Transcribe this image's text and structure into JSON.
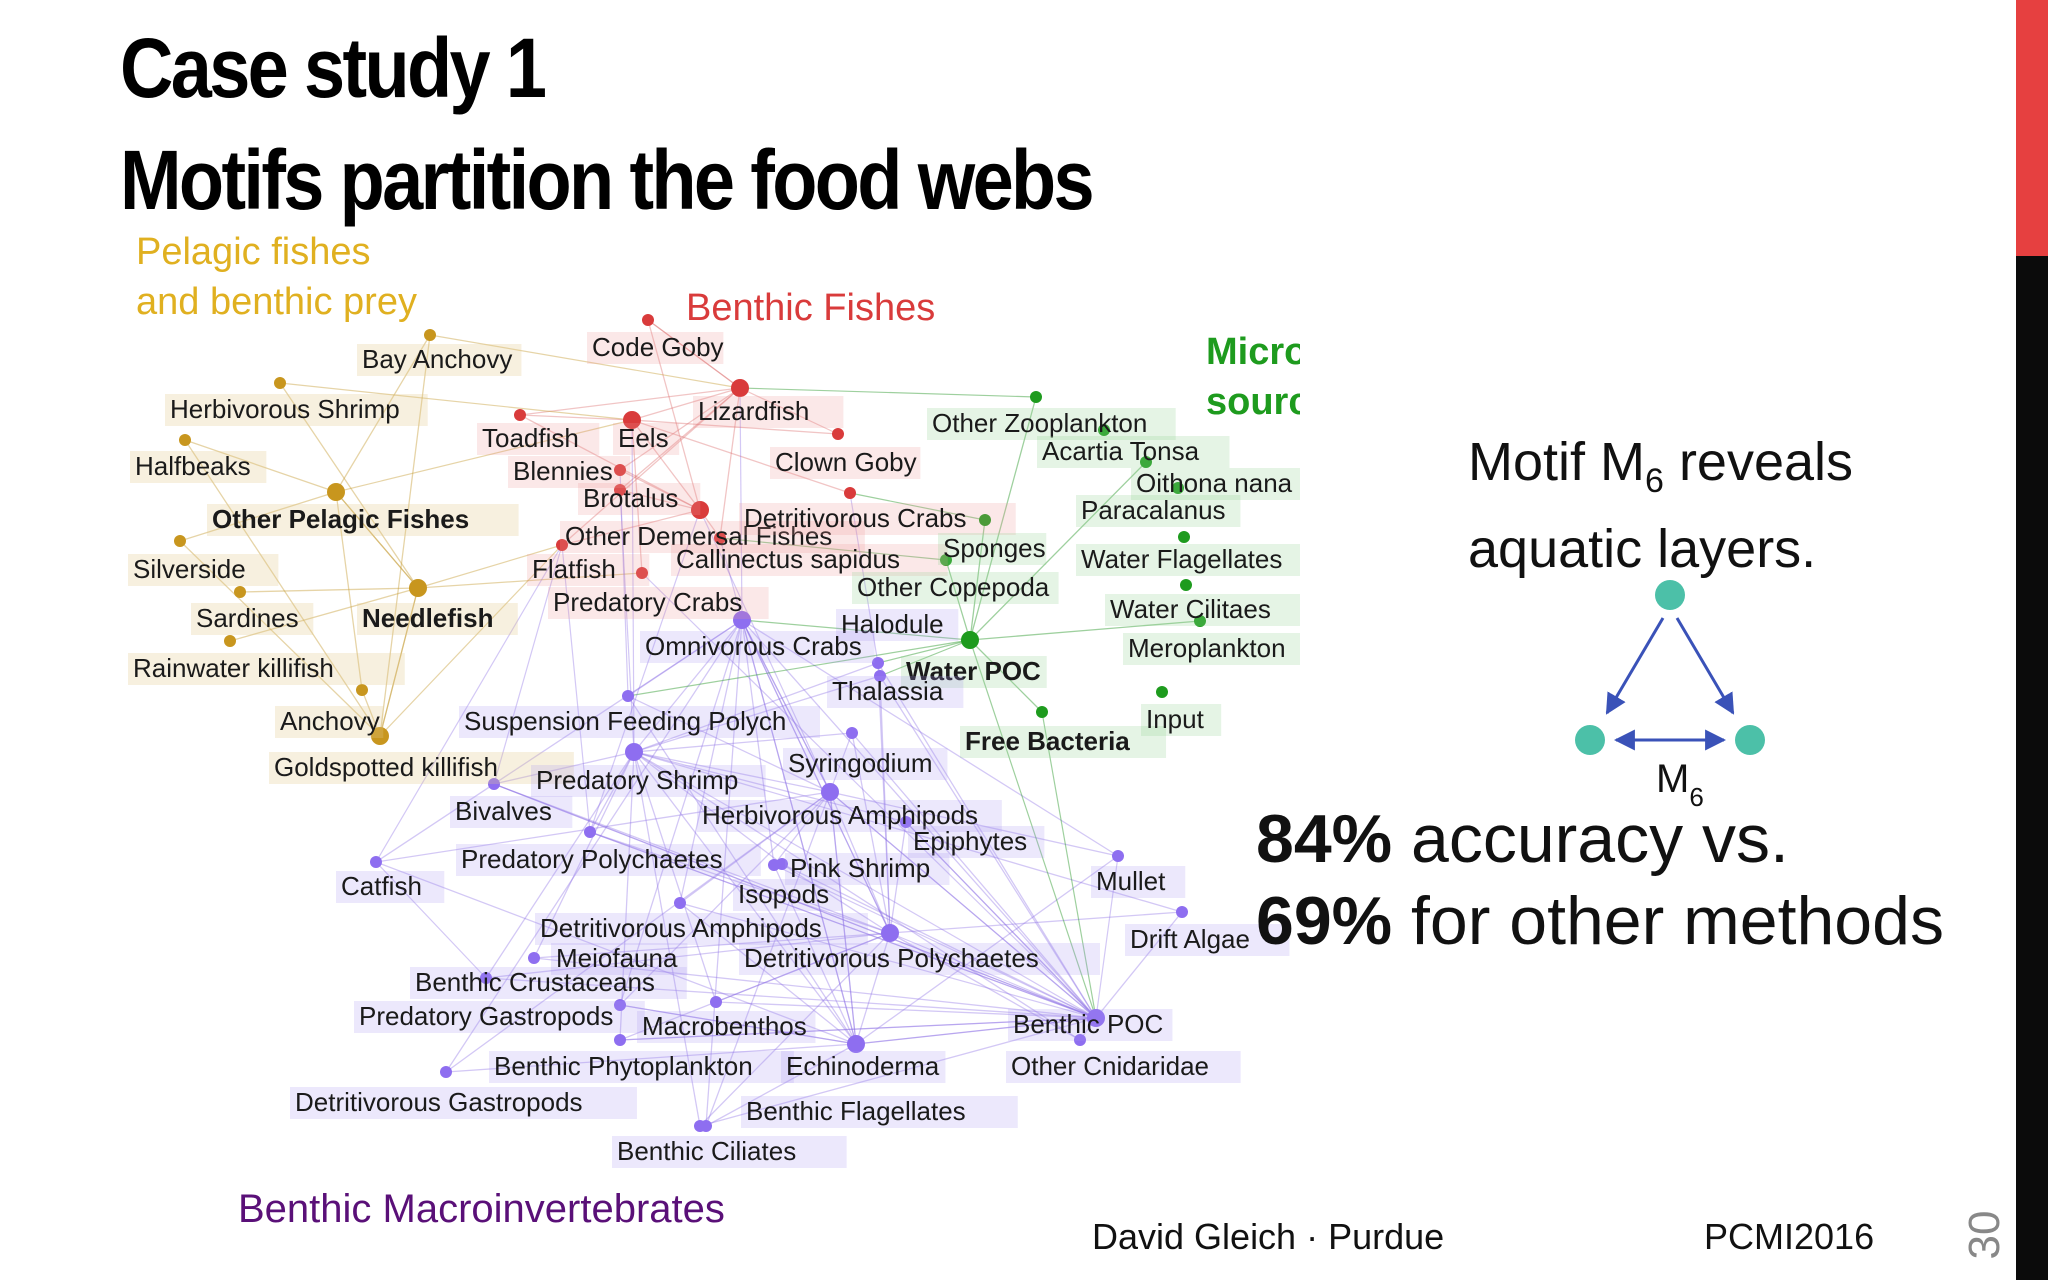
{
  "slide": {
    "title_line1": "Case study 1",
    "title_line2": "Motifs partition the food webs",
    "page_number": "30",
    "author": "David Gleich · Purdue",
    "event": "PCMI2016"
  },
  "colors": {
    "pelagic": "#e0b020",
    "pelagic_node": "#c8961e",
    "benthic_fish": "#d93b3b",
    "micronutrient": "#1e9b1e",
    "macroinvert": "#5a1078",
    "invert_node": "#8e6ef0",
    "motif_node": "#4cc0a8",
    "motif_edge": "#3a52b8",
    "accent_red": "#e64040"
  },
  "groups": {
    "pelagic_line1": "Pelagic fishes",
    "pelagic_line2": "and benthic prey",
    "benthic_fishes": "Benthic Fishes",
    "micro_line1": "Micronutrient",
    "micro_line2": "sources",
    "macroinvertebrates": "Benthic Macroinvertebrates"
  },
  "food_web": {
    "nodes": [
      {
        "label": "Bay Anchovy",
        "group": "pelagic"
      },
      {
        "label": "Herbivorous Shrimp",
        "group": "pelagic"
      },
      {
        "label": "Halfbeaks",
        "group": "pelagic"
      },
      {
        "label": "Other Pelagic Fishes",
        "group": "pelagic",
        "bold": true
      },
      {
        "label": "Silverside",
        "group": "pelagic"
      },
      {
        "label": "Sardines",
        "group": "pelagic"
      },
      {
        "label": "Needlefish",
        "group": "pelagic",
        "bold": true
      },
      {
        "label": "Rainwater killifish",
        "group": "pelagic"
      },
      {
        "label": "Anchovy",
        "group": "pelagic"
      },
      {
        "label": "Goldspotted killifish",
        "group": "pelagic"
      },
      {
        "label": "Code Goby",
        "group": "fish"
      },
      {
        "label": "Lizardfish",
        "group": "fish"
      },
      {
        "label": "Toadfish",
        "group": "fish"
      },
      {
        "label": "Eels",
        "group": "fish"
      },
      {
        "label": "Blennies",
        "group": "fish"
      },
      {
        "label": "Clown Goby",
        "group": "fish"
      },
      {
        "label": "Brotalus",
        "group": "fish"
      },
      {
        "label": "Other Demersal Fishes",
        "group": "fish"
      },
      {
        "label": "Flatfish",
        "group": "fish"
      },
      {
        "label": "Detritivorous Crabs",
        "group": "fish"
      },
      {
        "label": "Callinectus sapidus",
        "group": "fish"
      },
      {
        "label": "Predatory Crabs",
        "group": "fish"
      },
      {
        "label": "Other Zooplankton",
        "group": "micro"
      },
      {
        "label": "Acartia Tonsa",
        "group": "micro"
      },
      {
        "label": "Oithona nana",
        "group": "micro"
      },
      {
        "label": "Paracalanus",
        "group": "micro"
      },
      {
        "label": "Sponges",
        "group": "micro"
      },
      {
        "label": "Water Flagellates",
        "group": "micro"
      },
      {
        "label": "Other Copepoda",
        "group": "micro"
      },
      {
        "label": "Water Cilitaes",
        "group": "micro"
      },
      {
        "label": "Meroplankton",
        "group": "micro"
      },
      {
        "label": "Water POC",
        "group": "micro",
        "bold": true
      },
      {
        "label": "Free Bacteria",
        "group": "micro",
        "bold": true
      },
      {
        "label": "Input",
        "group": "micro"
      },
      {
        "label": "Halodule",
        "group": "invert"
      },
      {
        "label": "Omnivorous Crabs",
        "group": "invert"
      },
      {
        "label": "Thalassia",
        "group": "invert"
      },
      {
        "label": "Suspension Feeding Polych",
        "group": "invert"
      },
      {
        "label": "Syringodium",
        "group": "invert"
      },
      {
        "label": "Predatory Shrimp",
        "group": "invert"
      },
      {
        "label": "Bivalves",
        "group": "invert"
      },
      {
        "label": "Herbivorous Amphipods",
        "group": "invert"
      },
      {
        "label": "Epiphytes",
        "group": "invert"
      },
      {
        "label": "Catfish",
        "group": "invert"
      },
      {
        "label": "Predatory Polychaetes",
        "group": "invert"
      },
      {
        "label": "Pink Shrimp",
        "group": "invert"
      },
      {
        "label": "Isopods",
        "group": "invert"
      },
      {
        "label": "Mullet",
        "group": "invert"
      },
      {
        "label": "Drift Algae",
        "group": "invert"
      },
      {
        "label": "Detritivorous Amphipods",
        "group": "invert"
      },
      {
        "label": "Meiofauna",
        "group": "invert"
      },
      {
        "label": "Detritivorous Polychaetes",
        "group": "invert"
      },
      {
        "label": "Benthic Crustaceans",
        "group": "invert"
      },
      {
        "label": "Predatory Gastropods",
        "group": "invert"
      },
      {
        "label": "Macrobenthos",
        "group": "invert"
      },
      {
        "label": "Benthic POC",
        "group": "invert"
      },
      {
        "label": "Benthic Phytoplankton",
        "group": "invert"
      },
      {
        "label": "Echinoderma",
        "group": "invert"
      },
      {
        "label": "Other Cnidaridae",
        "group": "invert"
      },
      {
        "label": "Detritivorous Gastropods",
        "group": "invert"
      },
      {
        "label": "Benthic Flagellates",
        "group": "invert"
      },
      {
        "label": "Benthic Ciliates",
        "group": "invert"
      }
    ]
  },
  "motif": {
    "claim_pre": "Motif M",
    "claim_sub": "6",
    "claim_post": " reveals",
    "claim_line2": "aquatic layers.",
    "label_main": "M",
    "label_sub": "6"
  },
  "accuracy": {
    "line1_bold": "84%",
    "line1_rest": " accuracy vs.",
    "line2_bold": "69%",
    "line2_rest": " for other methods"
  }
}
